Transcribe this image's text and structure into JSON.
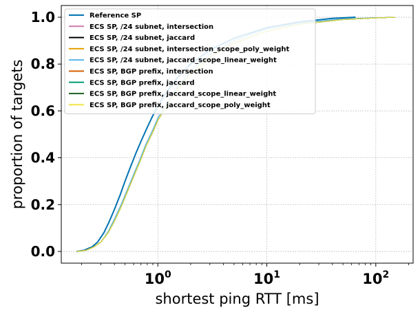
{
  "chart_data": {
    "type": "line",
    "xlabel": "shortest ping RTT [ms]",
    "ylabel": "proportion of targets",
    "xscale": "log",
    "xlim": [
      0.13,
      220
    ],
    "ylim": [
      -0.05,
      1.05
    ],
    "grid": true,
    "legend_position": "top-left",
    "x_ticks": [
      {
        "value": 1,
        "base": "10",
        "exp": "0"
      },
      {
        "value": 10,
        "base": "10",
        "exp": "1"
      },
      {
        "value": 100,
        "base": "10",
        "exp": "2"
      }
    ],
    "y_ticks": [
      "0.0",
      "0.2",
      "0.4",
      "0.6",
      "0.8",
      "1.0"
    ],
    "y_tick_values": [
      0.0,
      0.2,
      0.4,
      0.6,
      0.8,
      1.0
    ],
    "series": [
      {
        "name": "Reference SP",
        "color": "#0072b2",
        "width": 2.0,
        "points": [
          [
            0.18,
            0.0
          ],
          [
            0.21,
            0.005
          ],
          [
            0.25,
            0.02
          ],
          [
            0.28,
            0.04
          ],
          [
            0.32,
            0.08
          ],
          [
            0.36,
            0.13
          ],
          [
            0.4,
            0.18
          ],
          [
            0.45,
            0.24
          ],
          [
            0.5,
            0.3
          ],
          [
            0.56,
            0.36
          ],
          [
            0.63,
            0.42
          ],
          [
            0.7,
            0.47
          ],
          [
            0.8,
            0.53
          ],
          [
            0.9,
            0.58
          ],
          [
            1.0,
            0.62
          ],
          [
            1.2,
            0.68
          ],
          [
            1.5,
            0.74
          ],
          [
            2,
            0.8
          ],
          [
            3,
            0.86
          ],
          [
            5,
            0.91
          ],
          [
            10,
            0.955
          ],
          [
            20,
            0.98
          ],
          [
            40,
            0.995
          ],
          [
            65,
            1.0
          ]
        ]
      },
      {
        "name": "ECS SP, /24 subnet, intersection",
        "color": "#cc79a7",
        "width": 1.2,
        "points": [
          [
            0.18,
            0.0
          ],
          [
            0.22,
            0.005
          ],
          [
            0.26,
            0.02
          ],
          [
            0.3,
            0.04
          ],
          [
            0.35,
            0.08
          ],
          [
            0.4,
            0.13
          ],
          [
            0.46,
            0.19
          ],
          [
            0.52,
            0.25
          ],
          [
            0.6,
            0.32
          ],
          [
            0.68,
            0.38
          ],
          [
            0.78,
            0.45
          ],
          [
            0.9,
            0.51
          ],
          [
            1.0,
            0.56
          ],
          [
            1.2,
            0.62
          ],
          [
            1.5,
            0.69
          ],
          [
            2,
            0.76
          ],
          [
            3,
            0.83
          ],
          [
            5,
            0.89
          ],
          [
            10,
            0.94
          ],
          [
            20,
            0.97
          ],
          [
            50,
            0.99
          ],
          [
            100,
            0.997
          ],
          [
            150,
            1.0
          ]
        ]
      },
      {
        "name": "ECS SP, /24 subnet, jaccard",
        "color": "#000000",
        "width": 1.2,
        "points": [
          [
            0.18,
            0.0
          ],
          [
            0.22,
            0.005
          ],
          [
            0.26,
            0.02
          ],
          [
            0.3,
            0.04
          ],
          [
            0.35,
            0.08
          ],
          [
            0.4,
            0.13
          ],
          [
            0.46,
            0.19
          ],
          [
            0.52,
            0.25
          ],
          [
            0.6,
            0.32
          ],
          [
            0.68,
            0.38
          ],
          [
            0.78,
            0.45
          ],
          [
            0.9,
            0.51
          ],
          [
            1.0,
            0.56
          ],
          [
            1.2,
            0.62
          ],
          [
            1.5,
            0.69
          ],
          [
            2,
            0.76
          ],
          [
            3,
            0.83
          ],
          [
            5,
            0.89
          ],
          [
            10,
            0.94
          ],
          [
            20,
            0.97
          ],
          [
            50,
            0.99
          ],
          [
            100,
            0.997
          ],
          [
            150,
            1.0
          ]
        ]
      },
      {
        "name": "ECS SP, /24 subnet, intersection_scope_poly_weight",
        "color": "#e69f00",
        "width": 1.2,
        "points": [
          [
            0.18,
            0.0
          ],
          [
            0.22,
            0.005
          ],
          [
            0.26,
            0.02
          ],
          [
            0.3,
            0.04
          ],
          [
            0.35,
            0.08
          ],
          [
            0.4,
            0.13
          ],
          [
            0.46,
            0.19
          ],
          [
            0.52,
            0.25
          ],
          [
            0.6,
            0.32
          ],
          [
            0.68,
            0.38
          ],
          [
            0.78,
            0.45
          ],
          [
            0.9,
            0.51
          ],
          [
            1.0,
            0.56
          ],
          [
            1.2,
            0.62
          ],
          [
            1.5,
            0.69
          ],
          [
            2,
            0.76
          ],
          [
            3,
            0.83
          ],
          [
            5,
            0.89
          ],
          [
            10,
            0.94
          ],
          [
            20,
            0.97
          ],
          [
            50,
            0.99
          ],
          [
            100,
            0.997
          ],
          [
            150,
            1.0
          ]
        ]
      },
      {
        "name": "ECS SP, /24 subnet, jaccard_scope_linear_weight",
        "color": "#56b4e9",
        "width": 1.2,
        "points": [
          [
            0.18,
            0.0
          ],
          [
            0.22,
            0.005
          ],
          [
            0.26,
            0.02
          ],
          [
            0.3,
            0.04
          ],
          [
            0.35,
            0.085
          ],
          [
            0.4,
            0.14
          ],
          [
            0.46,
            0.2
          ],
          [
            0.52,
            0.26
          ],
          [
            0.6,
            0.33
          ],
          [
            0.68,
            0.39
          ],
          [
            0.78,
            0.46
          ],
          [
            0.9,
            0.52
          ],
          [
            1.0,
            0.57
          ],
          [
            1.2,
            0.63
          ],
          [
            1.5,
            0.7
          ],
          [
            2,
            0.77
          ],
          [
            3,
            0.84
          ],
          [
            5,
            0.9
          ],
          [
            10,
            0.95
          ],
          [
            20,
            0.975
          ],
          [
            50,
            0.993
          ],
          [
            100,
            0.998
          ],
          [
            150,
            1.0
          ]
        ]
      },
      {
        "name": "ECS SP, BGP prefix, intersection",
        "color": "#d55e00",
        "width": 1.2,
        "points": [
          [
            0.18,
            0.0
          ],
          [
            0.22,
            0.005
          ],
          [
            0.26,
            0.02
          ],
          [
            0.3,
            0.04
          ],
          [
            0.35,
            0.08
          ],
          [
            0.4,
            0.13
          ],
          [
            0.46,
            0.19
          ],
          [
            0.52,
            0.25
          ],
          [
            0.6,
            0.32
          ],
          [
            0.68,
            0.38
          ],
          [
            0.78,
            0.45
          ],
          [
            0.9,
            0.51
          ],
          [
            1.0,
            0.56
          ],
          [
            1.2,
            0.62
          ],
          [
            1.5,
            0.69
          ],
          [
            2,
            0.76
          ],
          [
            3,
            0.83
          ],
          [
            5,
            0.89
          ],
          [
            10,
            0.94
          ],
          [
            20,
            0.97
          ],
          [
            50,
            0.99
          ],
          [
            100,
            0.997
          ],
          [
            150,
            1.0
          ]
        ]
      },
      {
        "name": "ECS SP, BGP prefix, jaccard",
        "color": "#009e73",
        "width": 1.2,
        "points": [
          [
            0.18,
            0.0
          ],
          [
            0.22,
            0.005
          ],
          [
            0.26,
            0.02
          ],
          [
            0.3,
            0.04
          ],
          [
            0.35,
            0.08
          ],
          [
            0.4,
            0.13
          ],
          [
            0.46,
            0.19
          ],
          [
            0.52,
            0.25
          ],
          [
            0.6,
            0.32
          ],
          [
            0.68,
            0.38
          ],
          [
            0.78,
            0.45
          ],
          [
            0.9,
            0.51
          ],
          [
            1.0,
            0.56
          ],
          [
            1.2,
            0.62
          ],
          [
            1.5,
            0.69
          ],
          [
            2,
            0.76
          ],
          [
            3,
            0.83
          ],
          [
            5,
            0.89
          ],
          [
            10,
            0.94
          ],
          [
            20,
            0.97
          ],
          [
            50,
            0.99
          ],
          [
            100,
            0.997
          ],
          [
            150,
            1.0
          ]
        ]
      },
      {
        "name": "ECS SP, BGP prefix, jaccard_scope_linear_weight",
        "color": "#1b5e20",
        "width": 1.2,
        "points": [
          [
            0.18,
            0.0
          ],
          [
            0.22,
            0.005
          ],
          [
            0.26,
            0.02
          ],
          [
            0.3,
            0.04
          ],
          [
            0.35,
            0.08
          ],
          [
            0.4,
            0.13
          ],
          [
            0.46,
            0.19
          ],
          [
            0.52,
            0.25
          ],
          [
            0.6,
            0.32
          ],
          [
            0.68,
            0.38
          ],
          [
            0.78,
            0.45
          ],
          [
            0.9,
            0.51
          ],
          [
            1.0,
            0.56
          ],
          [
            1.2,
            0.62
          ],
          [
            1.5,
            0.69
          ],
          [
            2,
            0.76
          ],
          [
            3,
            0.83
          ],
          [
            5,
            0.89
          ],
          [
            10,
            0.94
          ],
          [
            20,
            0.97
          ],
          [
            50,
            0.99
          ],
          [
            100,
            0.997
          ],
          [
            150,
            1.0
          ]
        ]
      },
      {
        "name": "ECS SP, BGP prefix, jaccard_scope_poly_weight",
        "color": "#f0e442",
        "width": 1.2,
        "points": [
          [
            0.18,
            0.0
          ],
          [
            0.22,
            0.005
          ],
          [
            0.26,
            0.02
          ],
          [
            0.3,
            0.04
          ],
          [
            0.35,
            0.08
          ],
          [
            0.4,
            0.13
          ],
          [
            0.46,
            0.19
          ],
          [
            0.52,
            0.25
          ],
          [
            0.6,
            0.32
          ],
          [
            0.68,
            0.38
          ],
          [
            0.78,
            0.45
          ],
          [
            0.9,
            0.51
          ],
          [
            1.0,
            0.56
          ],
          [
            1.2,
            0.62
          ],
          [
            1.5,
            0.69
          ],
          [
            2,
            0.76
          ],
          [
            3,
            0.83
          ],
          [
            5,
            0.89
          ],
          [
            10,
            0.94
          ],
          [
            20,
            0.97
          ],
          [
            50,
            0.99
          ],
          [
            100,
            0.997
          ],
          [
            150,
            1.0
          ]
        ]
      }
    ]
  }
}
